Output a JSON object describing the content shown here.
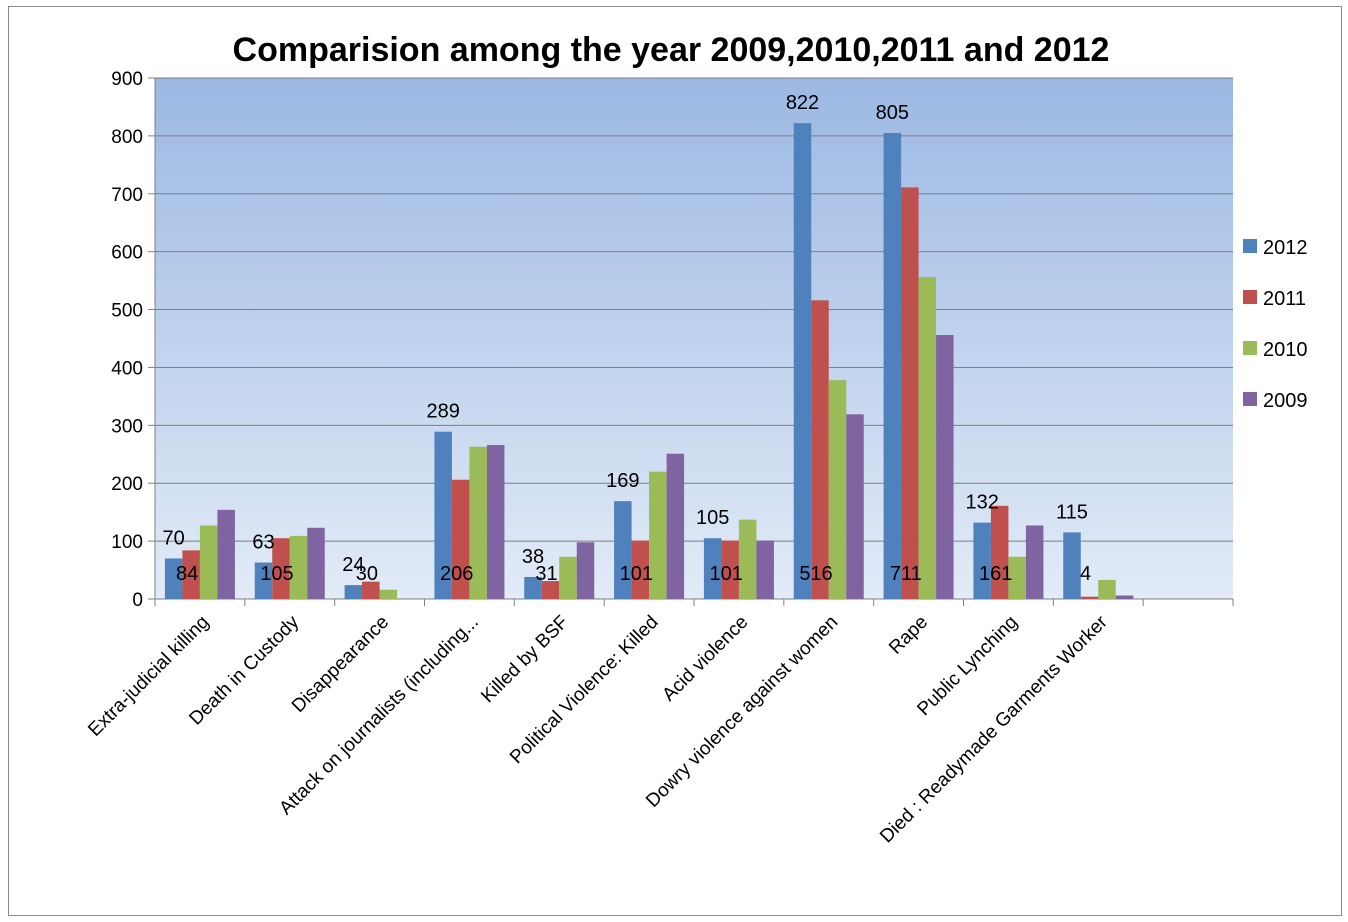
{
  "chart_data": {
    "type": "bar",
    "title": "Comparision among the year 2009,2010,2011 and 2012",
    "xlabel": "",
    "ylabel": "",
    "ylim": [
      0,
      900
    ],
    "yticks": [
      "0",
      "100",
      "200",
      "300",
      "400",
      "500",
      "600",
      "700",
      "800",
      "900"
    ],
    "grid": true,
    "legend_position": "right",
    "categories": [
      "Extra-judicial killing",
      "Death in Custody",
      "Disappearance",
      "Attack on journalists (including...",
      "Killed by BSF",
      "Political Violence: Killed",
      "Acid violence",
      "Dowry violence against women",
      "Rape",
      "Public Lynching",
      "Died : Readymade Garments Worker",
      ""
    ],
    "series": [
      {
        "name": "2012",
        "color": "#4f81bd",
        "values": [
          70,
          63,
          24,
          289,
          38,
          169,
          105,
          822,
          805,
          132,
          115,
          null
        ]
      },
      {
        "name": "2011",
        "color": "#c0504d",
        "values": [
          84,
          105,
          30,
          206,
          31,
          101,
          101,
          516,
          711,
          161,
          4,
          null
        ]
      },
      {
        "name": "2010",
        "color": "#9bbb59",
        "values": [
          127,
          109,
          16,
          263,
          73,
          220,
          137,
          378,
          556,
          73,
          33,
          null
        ]
      },
      {
        "name": "2009",
        "color": "#8064a2",
        "values": [
          154,
          123,
          0,
          266,
          98,
          251,
          101,
          319,
          456,
          127,
          6,
          null
        ]
      }
    ],
    "data_labels": [
      {
        "series": "2012",
        "labels": [
          "70",
          "63",
          "24",
          "289",
          "38",
          "169",
          "105",
          "822",
          "805",
          "132",
          "115",
          ""
        ]
      },
      {
        "series": "2011",
        "labels": [
          "84",
          "105",
          "30",
          "206",
          "31",
          "101",
          "101",
          "516",
          "711",
          "161",
          "4",
          ""
        ]
      }
    ],
    "plot_background": [
      "#9cb8e3",
      "#e2ebf7"
    ]
  }
}
